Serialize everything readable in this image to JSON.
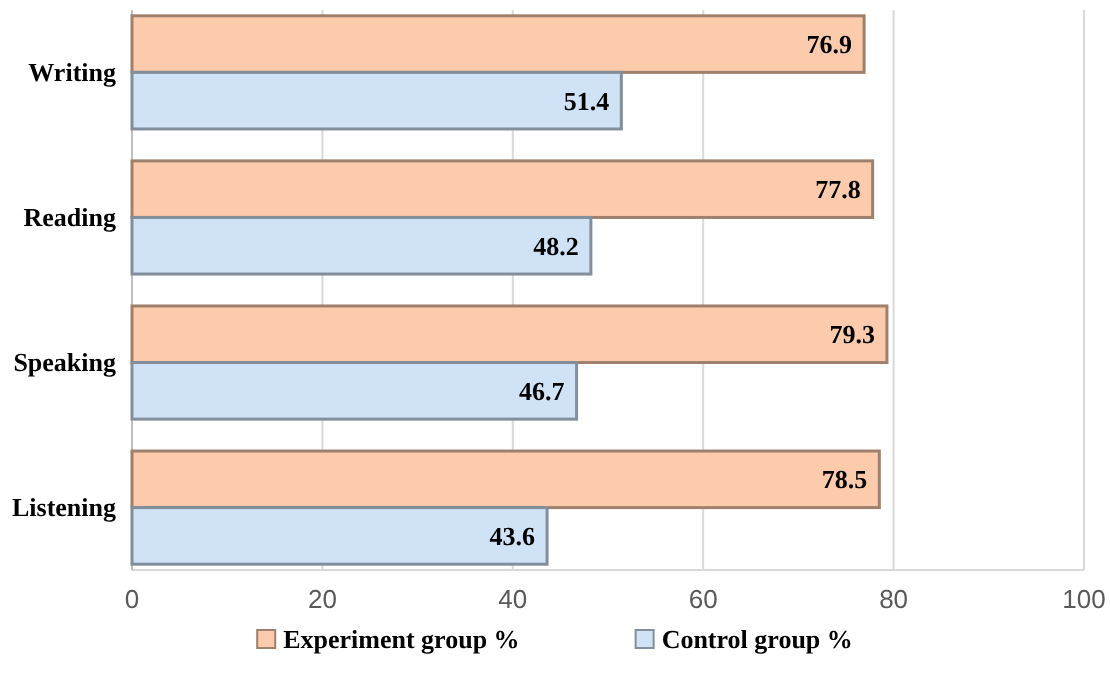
{
  "chart_data": {
    "type": "bar",
    "orientation": "horizontal",
    "categories": [
      "Writing",
      "Reading",
      "Speaking",
      "Listening"
    ],
    "series": [
      {
        "name": "Experiment group %",
        "color": "#fbcbab",
        "values": [
          76.9,
          77.8,
          79.3,
          78.5
        ]
      },
      {
        "name": "Control group %",
        "color": "#cfe2f6",
        "values": [
          51.4,
          48.2,
          46.7,
          43.6
        ]
      }
    ],
    "xlim": [
      0,
      100
    ],
    "xticks": [
      0,
      20,
      40,
      60,
      80,
      100
    ],
    "grid": "x",
    "legend": "bottom",
    "data_labels": true
  }
}
